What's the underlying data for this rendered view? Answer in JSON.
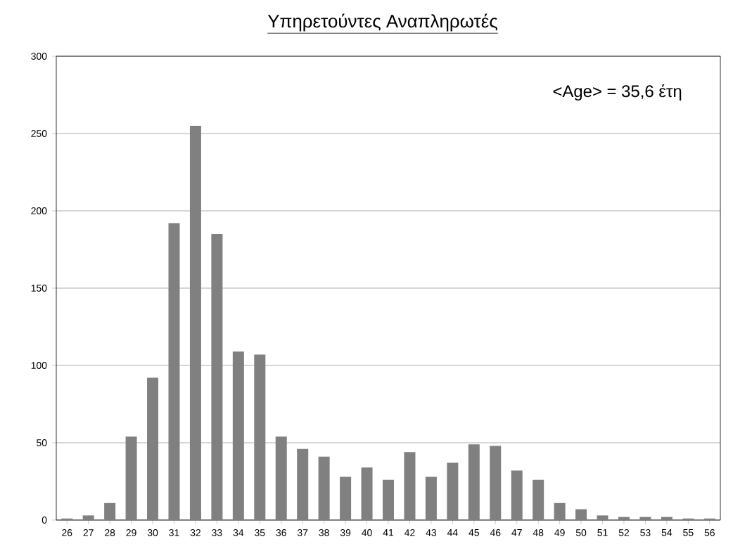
{
  "chart_data": {
    "type": "bar",
    "title": "Υπηρετούντες  Αναπληρωτές",
    "annotations": [
      "<Age> = 35,6 έτη"
    ],
    "categories": [
      "26",
      "27",
      "28",
      "29",
      "30",
      "31",
      "32",
      "33",
      "34",
      "35",
      "36",
      "37",
      "38",
      "39",
      "40",
      "41",
      "42",
      "43",
      "44",
      "45",
      "46",
      "47",
      "48",
      "49",
      "50",
      "51",
      "52",
      "53",
      "54",
      "55",
      "56"
    ],
    "values": [
      1,
      3,
      11,
      54,
      92,
      192,
      255,
      185,
      109,
      107,
      54,
      46,
      41,
      28,
      34,
      26,
      44,
      28,
      37,
      49,
      48,
      32,
      26,
      11,
      7,
      3,
      2,
      2,
      2,
      1,
      1
    ],
    "color": "#808080",
    "ylim": [
      0,
      300
    ],
    "yticks": [
      0,
      50,
      100,
      150,
      200,
      250,
      300
    ],
    "grid": "y"
  }
}
